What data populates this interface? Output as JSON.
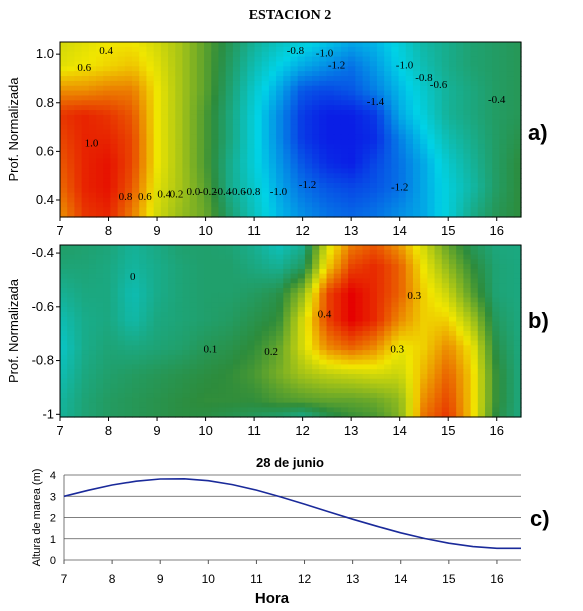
{
  "figure": {
    "title": "ESTACION 2",
    "panel_labels": [
      "a)",
      "b)",
      "c)"
    ]
  },
  "chart_data": [
    {
      "type": "heatmap",
      "panel": "a)",
      "xlabel": "",
      "ylabel": "Prof. Normalizada",
      "xlim": [
        7,
        16.5
      ],
      "ylim": [
        1.05,
        0.33
      ],
      "xticks": [
        7,
        8,
        9,
        10,
        11,
        12,
        13,
        14,
        15,
        16
      ],
      "yticks": [
        0.4,
        0.6,
        0.8,
        1.0
      ],
      "ytick_labels": [
        "0.4",
        "0.6",
        "0.8",
        "1.0"
      ],
      "colorscale": [
        "#0a1ee6",
        "#00d2e6",
        "#2d8c3c",
        "#f0e600",
        "#e60000"
      ],
      "value_range": [
        -1.5,
        1.1
      ],
      "x": [
        7.0,
        7.5,
        8.0,
        8.5,
        9.0,
        9.5,
        10.0,
        10.5,
        11.0,
        11.5,
        12.0,
        12.5,
        13.0,
        13.5,
        14.0,
        14.5,
        15.0,
        15.5,
        16.0,
        16.5
      ],
      "y": [
        0.35,
        0.45,
        0.55,
        0.65,
        0.75,
        0.85,
        0.95,
        1.05
      ],
      "z": [
        [
          0.7,
          0.95,
          1.0,
          0.75,
          0.35,
          0.15,
          0.0,
          -0.4,
          -0.7,
          -0.95,
          -1.1,
          -1.2,
          -1.25,
          -1.2,
          -1.1,
          -1.0,
          -0.8,
          -0.5,
          -0.3,
          -0.2
        ],
        [
          0.8,
          1.0,
          1.05,
          0.85,
          0.4,
          0.2,
          -0.05,
          -0.5,
          -0.75,
          -1.0,
          -1.2,
          -1.3,
          -1.35,
          -1.3,
          -1.2,
          -1.0,
          -0.8,
          -0.6,
          -0.35,
          -0.2
        ],
        [
          0.85,
          1.0,
          1.05,
          0.9,
          0.45,
          0.2,
          -0.1,
          -0.5,
          -0.8,
          -1.05,
          -1.3,
          -1.45,
          -1.5,
          -1.35,
          -1.2,
          -1.0,
          -0.75,
          -0.55,
          -0.35,
          -0.2
        ],
        [
          0.9,
          1.0,
          1.0,
          0.9,
          0.45,
          0.2,
          -0.1,
          -0.45,
          -0.8,
          -1.1,
          -1.4,
          -1.5,
          -1.5,
          -1.45,
          -1.15,
          -0.9,
          -0.65,
          -0.5,
          -0.35,
          -0.25
        ],
        [
          0.95,
          1.0,
          0.95,
          0.85,
          0.45,
          0.2,
          -0.1,
          -0.45,
          -0.8,
          -1.1,
          -1.4,
          -1.5,
          -1.5,
          -1.4,
          -1.0,
          -0.8,
          -0.55,
          -0.45,
          -0.35,
          -0.3
        ],
        [
          0.7,
          0.7,
          0.75,
          0.75,
          0.45,
          0.2,
          -0.05,
          -0.4,
          -0.75,
          -1.0,
          -1.3,
          -1.35,
          -1.3,
          -1.15,
          -0.95,
          -0.75,
          -0.55,
          -0.45,
          -0.35,
          -0.3
        ],
        [
          0.4,
          0.45,
          0.5,
          0.55,
          0.4,
          0.2,
          -0.05,
          -0.35,
          -0.65,
          -0.85,
          -1.0,
          -1.1,
          -1.2,
          -1.05,
          -0.85,
          -0.65,
          -0.5,
          -0.4,
          -0.35,
          -0.3
        ],
        [
          0.35,
          0.4,
          0.45,
          0.45,
          0.35,
          0.2,
          -0.05,
          -0.3,
          -0.55,
          -0.7,
          -0.8,
          -0.9,
          -1.0,
          -0.95,
          -0.8,
          -0.6,
          -0.5,
          -0.4,
          -0.35,
          -0.3
        ]
      ],
      "contour_labels": [
        {
          "text": "1.0",
          "x": 7.65,
          "y": 0.62
        },
        {
          "text": "0.8",
          "x": 8.35,
          "y": 0.4
        },
        {
          "text": "0.6",
          "x": 8.75,
          "y": 0.4
        },
        {
          "text": "0.4",
          "x": 9.15,
          "y": 0.41
        },
        {
          "text": "0.2",
          "x": 9.4,
          "y": 0.41
        },
        {
          "text": "0.0",
          "x": 9.75,
          "y": 0.42
        },
        {
          "text": "-0.2",
          "x": 10.05,
          "y": 0.42
        },
        {
          "text": "-0.4",
          "x": 10.35,
          "y": 0.42
        },
        {
          "text": "-0.6",
          "x": 10.65,
          "y": 0.42
        },
        {
          "text": "-0.8",
          "x": 10.95,
          "y": 0.42
        },
        {
          "text": "-1.0",
          "x": 11.5,
          "y": 0.42
        },
        {
          "text": "-1.2",
          "x": 12.1,
          "y": 0.45
        },
        {
          "text": "-1.2",
          "x": 14.0,
          "y": 0.44
        },
        {
          "text": "-1.4",
          "x": 13.5,
          "y": 0.79
        },
        {
          "text": "-1.2",
          "x": 12.7,
          "y": 0.94
        },
        {
          "text": "-1.0",
          "x": 12.45,
          "y": 0.99
        },
        {
          "text": "-0.8",
          "x": 11.85,
          "y": 1.0
        },
        {
          "text": "-1.0",
          "x": 14.1,
          "y": 0.94
        },
        {
          "text": "-0.8",
          "x": 14.5,
          "y": 0.89
        },
        {
          "text": "-0.6",
          "x": 14.8,
          "y": 0.86
        },
        {
          "text": "-0.4",
          "x": 16.0,
          "y": 0.8
        },
        {
          "text": "0.6",
          "x": 7.5,
          "y": 0.93
        },
        {
          "text": "0.4",
          "x": 7.95,
          "y": 1.0
        }
      ]
    },
    {
      "type": "heatmap",
      "panel": "b)",
      "xlabel": "",
      "ylabel": "Prof. Normalizada",
      "xlim": [
        7,
        16.5
      ],
      "ylim": [
        -0.37,
        -1.01
      ],
      "xticks": [
        7,
        8,
        9,
        10,
        11,
        12,
        13,
        14,
        15,
        16
      ],
      "yticks": [
        -0.4,
        -0.6,
        -0.8,
        -1.0
      ],
      "ytick_labels": [
        "-0.4",
        "-0.6",
        "-0.8",
        "-1"
      ],
      "colorscale": [
        "#00d2e6",
        "#2d8c3c",
        "#f0e600",
        "#e60000"
      ],
      "value_range": [
        -0.05,
        0.45
      ],
      "x": [
        7.0,
        7.5,
        8.0,
        8.5,
        9.0,
        9.5,
        10.0,
        10.5,
        11.0,
        11.5,
        12.0,
        12.5,
        13.0,
        13.5,
        14.0,
        14.5,
        15.0,
        15.5,
        16.0,
        16.5
      ],
      "y": [
        -0.35,
        -0.45,
        -0.55,
        -0.65,
        -0.75,
        -0.85,
        -0.95,
        -1.05
      ],
      "z": [
        [
          0.08,
          0.07,
          0.06,
          0.03,
          0.05,
          0.07,
          0.07,
          0.06,
          0.03,
          -0.02,
          0.02,
          0.25,
          0.35,
          0.38,
          0.33,
          0.25,
          0.15,
          0.08,
          0.05,
          0.05
        ],
        [
          0.06,
          0.06,
          0.05,
          0.02,
          0.04,
          0.06,
          0.07,
          0.07,
          0.05,
          0.03,
          0.08,
          0.3,
          0.4,
          0.42,
          0.38,
          0.28,
          0.2,
          0.12,
          0.06,
          0.05
        ],
        [
          0.03,
          0.05,
          0.05,
          0.0,
          0.04,
          0.06,
          0.07,
          0.07,
          0.08,
          0.1,
          0.2,
          0.4,
          0.45,
          0.42,
          0.38,
          0.3,
          0.25,
          0.15,
          0.06,
          0.05
        ],
        [
          0.0,
          0.04,
          0.05,
          0.01,
          0.05,
          0.06,
          0.07,
          0.08,
          0.1,
          0.12,
          0.26,
          0.4,
          0.45,
          0.42,
          0.35,
          0.3,
          0.3,
          0.22,
          0.08,
          0.05
        ],
        [
          -0.02,
          0.04,
          0.06,
          0.05,
          0.06,
          0.07,
          0.09,
          0.1,
          0.12,
          0.16,
          0.26,
          0.35,
          0.38,
          0.35,
          0.28,
          0.3,
          0.35,
          0.28,
          0.1,
          0.05
        ],
        [
          0.0,
          0.05,
          0.07,
          0.08,
          0.09,
          0.1,
          0.11,
          0.12,
          0.14,
          0.18,
          0.22,
          0.24,
          0.25,
          0.26,
          0.25,
          0.32,
          0.38,
          0.3,
          0.12,
          0.05
        ],
        [
          0.02,
          0.06,
          0.08,
          0.09,
          0.1,
          0.11,
          0.12,
          0.12,
          0.12,
          0.14,
          0.15,
          0.16,
          0.16,
          0.17,
          0.2,
          0.35,
          0.4,
          0.3,
          0.12,
          0.05
        ],
        [
          0.03,
          0.06,
          0.08,
          0.09,
          0.1,
          0.11,
          0.1,
          0.08,
          0.06,
          0.02,
          -0.03,
          0.05,
          0.1,
          0.12,
          0.18,
          0.38,
          0.42,
          0.3,
          0.1,
          0.05
        ]
      ],
      "contour_labels": [
        {
          "text": "0",
          "x": 8.5,
          "y": -0.5
        },
        {
          "text": "0.1",
          "x": 10.1,
          "y": -0.77
        },
        {
          "text": "0.2",
          "x": 11.35,
          "y": -0.78
        },
        {
          "text": "0.4",
          "x": 12.45,
          "y": -0.64
        },
        {
          "text": "0.3",
          "x": 14.3,
          "y": -0.57
        },
        {
          "text": "0.3",
          "x": 13.95,
          "y": -0.77
        }
      ]
    },
    {
      "type": "line",
      "panel": "c)",
      "title": "28 de junio",
      "xlabel": "Hora",
      "ylabel": "Altura de marea (m)",
      "xlim": [
        7,
        16.5
      ],
      "ylim": [
        0,
        4
      ],
      "xticks": [
        7,
        8,
        9,
        10,
        11,
        12,
        13,
        14,
        15,
        16
      ],
      "yticks": [
        0,
        1,
        2,
        3,
        4
      ],
      "grid": "horizontal",
      "series": [
        {
          "color": "#1a2a9a",
          "x": [
            7.0,
            7.5,
            8.0,
            8.5,
            9.0,
            9.5,
            10.0,
            10.5,
            11.0,
            11.5,
            12.0,
            12.5,
            13.0,
            13.5,
            14.0,
            14.5,
            15.0,
            15.5,
            16.0,
            16.5
          ],
          "y": [
            3.0,
            3.28,
            3.53,
            3.71,
            3.81,
            3.82,
            3.73,
            3.55,
            3.29,
            2.97,
            2.63,
            2.27,
            1.92,
            1.59,
            1.28,
            1.01,
            0.79,
            0.63,
            0.55,
            0.55
          ]
        }
      ]
    }
  ]
}
